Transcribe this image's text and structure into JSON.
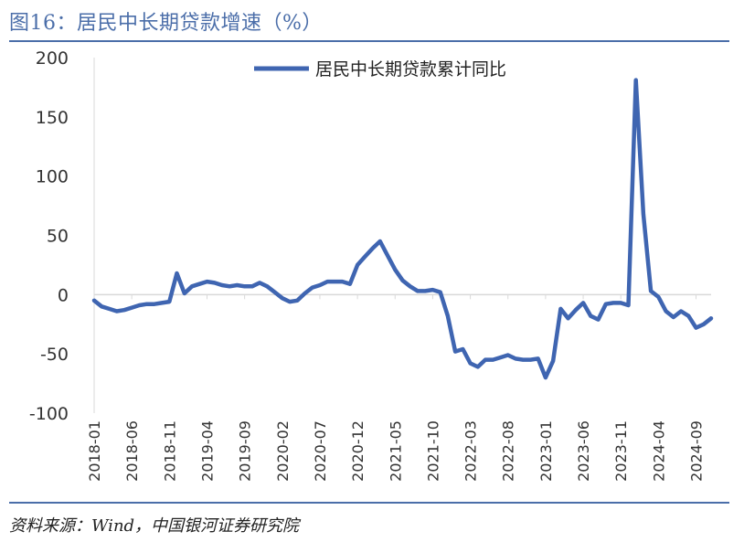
{
  "title": "图16：居民中长期贷款增速（%）",
  "source": "资料来源：Wind，中国银河证券研究院",
  "colors": {
    "line": "#3f65b1",
    "accent": "#4b6ea9",
    "axis": "#d9d9d9",
    "text": "#333333"
  },
  "chart_data": {
    "type": "line",
    "legend_position": "top-center",
    "grid": false,
    "ylim": [
      -100,
      200
    ],
    "yticks": [
      -100,
      -50,
      0,
      50,
      100,
      150,
      200
    ],
    "xtick_labels": [
      "2018-01",
      "2018-06",
      "2018-11",
      "2019-04",
      "2019-09",
      "2020-02",
      "2020-07",
      "2020-12",
      "2021-05",
      "2021-10",
      "2022-03",
      "2022-08",
      "2023-01",
      "2023-06",
      "2023-11",
      "2024-04",
      "2024-09"
    ],
    "x": [
      "2018-01",
      "2018-02",
      "2018-03",
      "2018-04",
      "2018-05",
      "2018-06",
      "2018-07",
      "2018-08",
      "2018-09",
      "2018-10",
      "2018-11",
      "2018-12",
      "2019-01",
      "2019-02",
      "2019-03",
      "2019-04",
      "2019-05",
      "2019-06",
      "2019-07",
      "2019-08",
      "2019-09",
      "2019-10",
      "2019-11",
      "2019-12",
      "2020-01",
      "2020-02",
      "2020-03",
      "2020-04",
      "2020-05",
      "2020-06",
      "2020-07",
      "2020-08",
      "2020-09",
      "2020-10",
      "2020-11",
      "2020-12",
      "2021-01",
      "2021-02",
      "2021-03",
      "2021-04",
      "2021-05",
      "2021-06",
      "2021-07",
      "2021-08",
      "2021-09",
      "2021-10",
      "2021-11",
      "2021-12",
      "2022-01",
      "2022-02",
      "2022-03",
      "2022-04",
      "2022-05",
      "2022-06",
      "2022-07",
      "2022-08",
      "2022-09",
      "2022-10",
      "2022-11",
      "2022-12",
      "2023-01",
      "2023-02",
      "2023-03",
      "2023-04",
      "2023-05",
      "2023-06",
      "2023-07",
      "2023-08",
      "2023-09",
      "2023-10",
      "2023-11",
      "2023-12",
      "2024-01",
      "2024-02",
      "2024-03",
      "2024-04",
      "2024-05",
      "2024-06",
      "2024-07",
      "2024-08",
      "2024-09",
      "2024-10",
      "2024-11"
    ],
    "series": [
      {
        "name": "居民中长期贷款累计同比",
        "values": [
          -5,
          -10,
          -12,
          -14,
          -13,
          -11,
          -9,
          -8,
          -8,
          -7,
          -6,
          18,
          1,
          7,
          9,
          11,
          10,
          8,
          7,
          8,
          7,
          7,
          10,
          7,
          2,
          -3,
          -6,
          -5,
          1,
          6,
          8,
          11,
          11,
          11,
          9,
          25,
          32,
          39,
          45,
          33,
          21,
          12,
          7,
          3,
          3,
          4,
          2,
          -18,
          -48,
          -46,
          -58,
          -61,
          -55,
          -55,
          -53,
          -51,
          -54,
          -55,
          -55,
          -54,
          -70,
          -56,
          -12,
          -20,
          -13,
          -7,
          -18,
          -21,
          -8,
          -7,
          -7,
          -9,
          181,
          68,
          3,
          -2,
          -14,
          -19,
          -14,
          -18,
          -28,
          -25,
          -20
        ]
      }
    ]
  }
}
